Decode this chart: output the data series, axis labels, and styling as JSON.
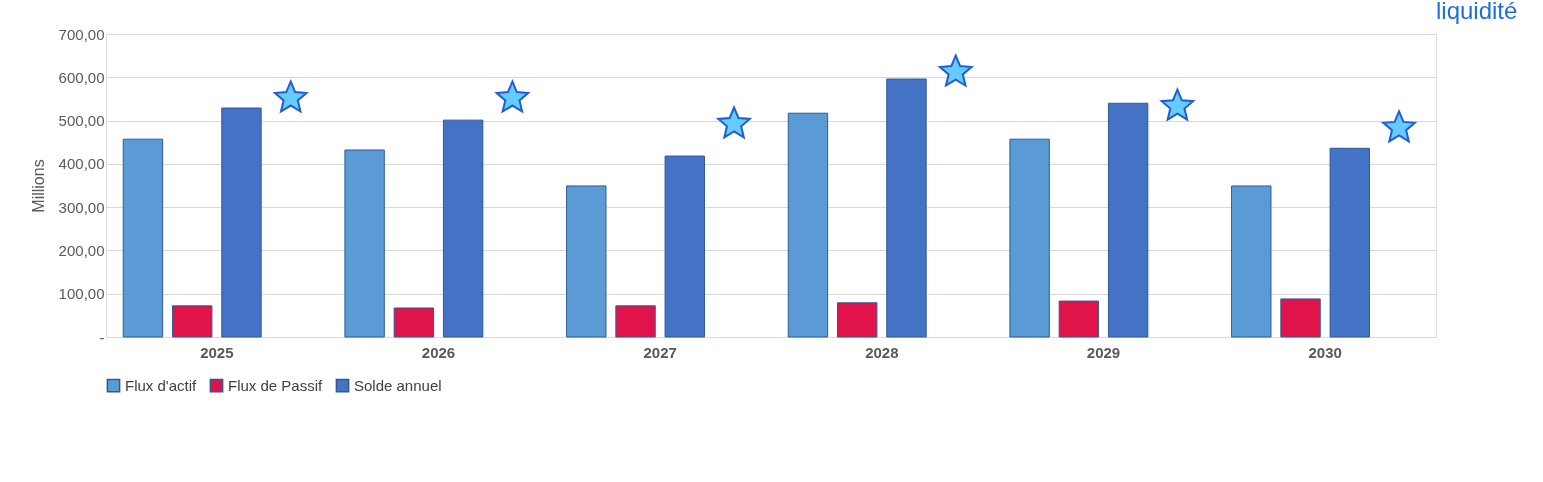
{
  "chart_data": {
    "type": "bar",
    "ylabel": "Millions",
    "categories": [
      "2025",
      "2026",
      "2027",
      "2028",
      "2029",
      "2030"
    ],
    "series": [
      {
        "name": "Flux d'actif",
        "color": "#5b9bd5",
        "values": [
          457,
          432,
          349,
          517,
          457,
          349
        ]
      },
      {
        "name": "Flux de Passif",
        "color": "#e0134a",
        "values": [
          72,
          67,
          72,
          79,
          83,
          88
        ]
      },
      {
        "name": "Solde annuel",
        "color": "#4472c4",
        "values": [
          529,
          501,
          418,
          596,
          540,
          436
        ]
      },
      {
        "type": "scatter",
        "color": "#66ccff",
        "marker": "star",
        "values": [
          552,
          552,
          492,
          612,
          533,
          483
        ]
      }
    ],
    "ylim": [
      0,
      700
    ],
    "yticks": [
      {
        "value": 0,
        "label": "-"
      },
      {
        "value": 100,
        "label": "100,00"
      },
      {
        "value": 200,
        "label": "200,00"
      },
      {
        "value": 300,
        "label": "300,00"
      },
      {
        "value": 400,
        "label": "400,00"
      },
      {
        "value": 500,
        "label": "500,00"
      },
      {
        "value": 600,
        "label": "600,00"
      },
      {
        "value": 700,
        "label": "700,00"
      }
    ],
    "grid": "y",
    "legend": "bottom",
    "annotations": [
      "liquidité"
    ]
  }
}
